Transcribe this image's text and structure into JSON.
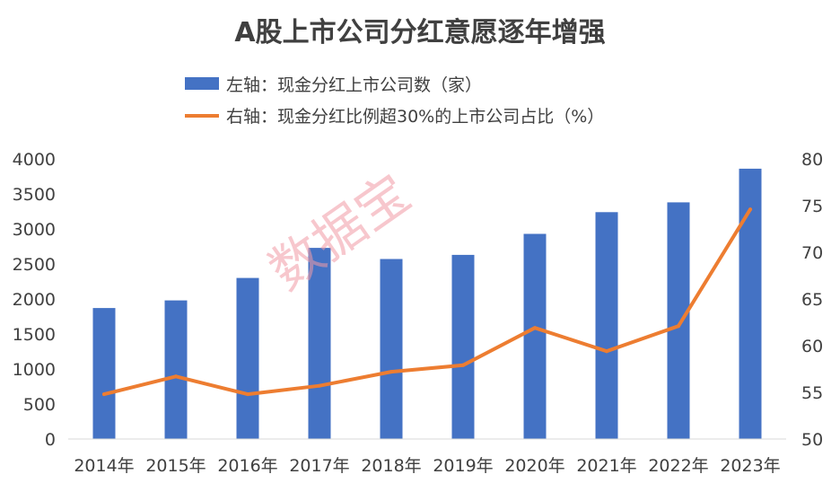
{
  "chart_data": {
    "type": "bar+line",
    "title": "A股上市公司分红意愿逐年增强",
    "categories": [
      "2014年",
      "2015年",
      "2016年",
      "2017年",
      "2018年",
      "2019年",
      "2020年",
      "2021年",
      "2022年",
      "2023年"
    ],
    "series": [
      {
        "name": "左轴：现金分红上市公司数（家）",
        "type": "bar",
        "axis": "left",
        "color": "#4472c4",
        "values": [
          1870,
          1980,
          2300,
          2730,
          2570,
          2630,
          2930,
          3240,
          3380,
          3860
        ]
      },
      {
        "name": "右轴：现金分红比例超30%的上市公司占比（%）",
        "type": "line",
        "axis": "right",
        "color": "#ed7d31",
        "values": [
          54.8,
          56.7,
          54.8,
          55.7,
          57.2,
          57.9,
          61.9,
          59.4,
          62.1,
          74.6
        ]
      }
    ],
    "y_left": {
      "min": 0,
      "max": 4000,
      "ticks": [
        0,
        500,
        1000,
        1500,
        2000,
        2500,
        3000,
        3500,
        4000
      ]
    },
    "y_right": {
      "min": 50,
      "max": 80,
      "ticks": [
        50,
        55,
        60,
        65,
        70,
        75,
        80
      ]
    },
    "legend_position": "top-center",
    "grid": false,
    "watermark": "数据宝"
  }
}
